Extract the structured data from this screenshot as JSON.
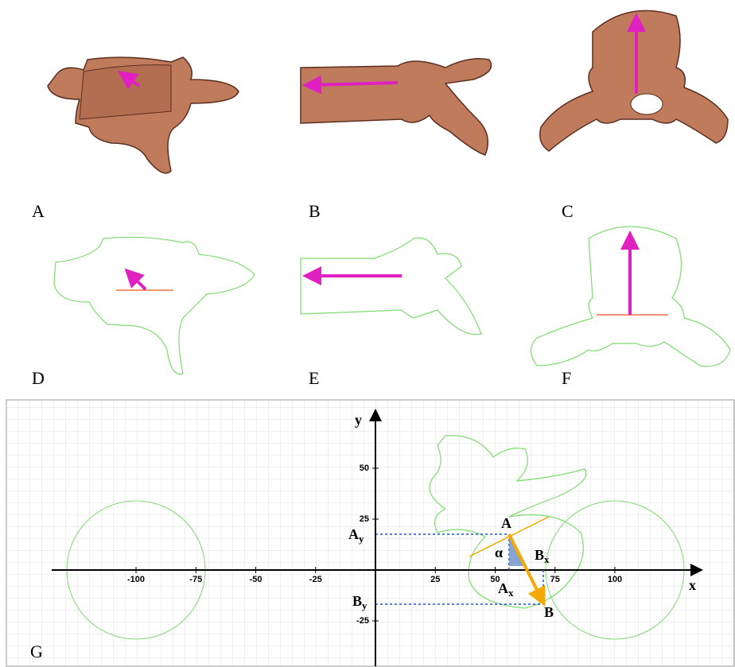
{
  "panels": [
    {
      "label": "A"
    },
    {
      "label": "B"
    },
    {
      "label": "C"
    },
    {
      "label": "D"
    },
    {
      "label": "E"
    },
    {
      "label": "F"
    }
  ],
  "panel_g": {
    "label": "G",
    "x_axis_label": "x",
    "y_axis_label": "y",
    "xticks": [
      -100,
      -75,
      -50,
      -25,
      25,
      50,
      75,
      100
    ],
    "yticks": [
      -25,
      25,
      50
    ],
    "points": {
      "A": "A",
      "B": "B",
      "alpha": "α",
      "Ax": {
        "base": "A",
        "sub": "x"
      },
      "Bx": {
        "base": "B",
        "sub": "x"
      },
      "Ay": {
        "base": "A",
        "sub": "y"
      },
      "By": {
        "base": "B",
        "sub": "y"
      }
    }
  }
}
